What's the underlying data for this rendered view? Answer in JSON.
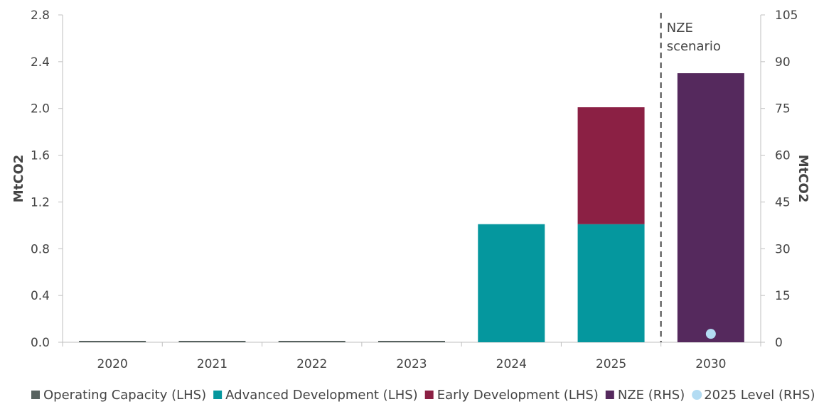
{
  "chart_data": {
    "type": "bar",
    "categories": [
      "2020",
      "2021",
      "2022",
      "2023",
      "2024",
      "2025",
      "2030"
    ],
    "stacked": true,
    "series": [
      {
        "name": "Operating Capacity (LHS)",
        "axis": "left",
        "color": "#57625f",
        "values": [
          0.01,
          0.01,
          0.01,
          0.01,
          0,
          0,
          0
        ]
      },
      {
        "name": "Advanced Development (LHS)",
        "axis": "left",
        "color": "#05979e",
        "values": [
          0,
          0,
          0,
          0,
          1.01,
          1.01,
          0
        ]
      },
      {
        "name": "Early Development (LHS)",
        "axis": "left",
        "color": "#8b2044",
        "values": [
          0,
          0,
          0,
          0,
          0,
          1.0,
          0
        ]
      },
      {
        "name": "NZE (RHS)",
        "axis": "right",
        "color": "#55295d",
        "values": [
          0,
          0,
          0,
          0,
          0,
          0,
          86.3
        ]
      }
    ],
    "points": [
      {
        "name": "2025 Level (RHS)",
        "axis": "right",
        "color": "#b3dcf3",
        "category": "2030",
        "value": 2.7,
        "marker": "circle"
      }
    ],
    "ylabel": "MtCO2",
    "y2label": "MtCO2",
    "ylim": [
      0,
      2.8
    ],
    "yticks": [
      "0.0",
      "0.4",
      "0.8",
      "1.2",
      "1.6",
      "2.0",
      "2.4",
      "2.8"
    ],
    "y2lim": [
      0,
      105
    ],
    "y2ticks": [
      "0",
      "15",
      "30",
      "45",
      "60",
      "75",
      "90",
      "105"
    ],
    "annotation": {
      "lines": [
        "NZE",
        "scenario"
      ],
      "divider": "between 2025 and 2030",
      "style": "dashed"
    },
    "grid": false,
    "legend": "bottom",
    "legend_items": [
      {
        "label": "Operating Capacity (LHS)",
        "color": "#57625f",
        "shape": "square"
      },
      {
        "label": "Advanced Development (LHS)",
        "color": "#05979e",
        "shape": "square"
      },
      {
        "label": "Early Development (LHS)",
        "color": "#8b2044",
        "shape": "square"
      },
      {
        "label": "NZE (RHS)",
        "color": "#55295d",
        "shape": "square"
      },
      {
        "label": "2025 Level (RHS)",
        "color": "#b3dcf3",
        "shape": "circle"
      }
    ]
  }
}
